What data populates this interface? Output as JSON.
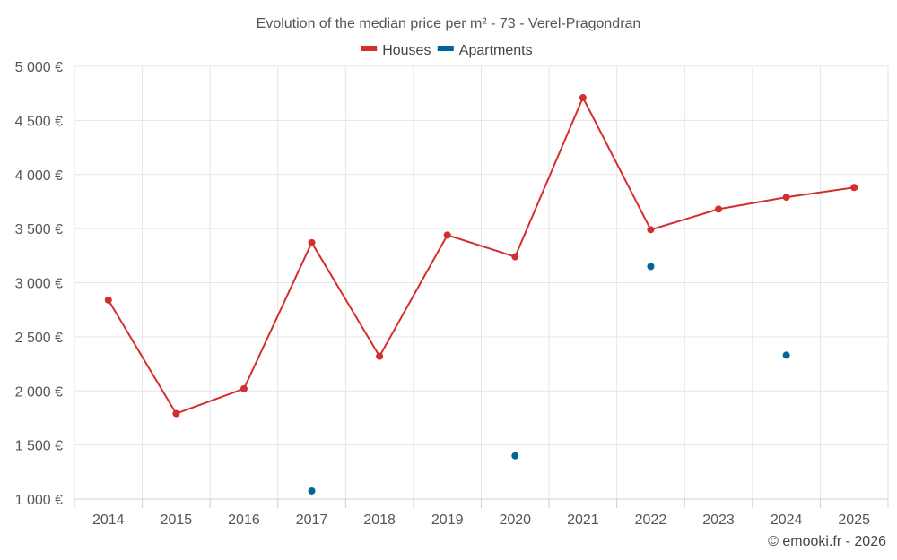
{
  "chart_data": {
    "type": "line",
    "title": "Evolution of the median price per m² - 73 - Verel-Pragondran",
    "categories": [
      "2014",
      "2015",
      "2016",
      "2017",
      "2018",
      "2019",
      "2020",
      "2021",
      "2022",
      "2023",
      "2024",
      "2025"
    ],
    "ylim": [
      1000,
      5000
    ],
    "yticks": [
      1000,
      1500,
      2000,
      2500,
      3000,
      3500,
      4000,
      4500,
      5000
    ],
    "ytick_labels": [
      "1 000 €",
      "1 500 €",
      "2 000 €",
      "2 500 €",
      "3 000 €",
      "3 500 €",
      "4 000 €",
      "4 500 €",
      "5 000 €"
    ],
    "grid": true,
    "legend_position": "top-center",
    "series": [
      {
        "name": "Houses",
        "color": "#d32f2f",
        "style": "line",
        "values": [
          2840,
          1790,
          2020,
          3370,
          2320,
          3440,
          3240,
          4710,
          3490,
          3680,
          3790,
          3880
        ]
      },
      {
        "name": "Apartments",
        "color": "#006699",
        "style": "points",
        "values": [
          null,
          null,
          null,
          1075,
          null,
          null,
          1400,
          null,
          3150,
          null,
          2330,
          null
        ]
      }
    ]
  },
  "credit": "© emooki.fr - 2026"
}
